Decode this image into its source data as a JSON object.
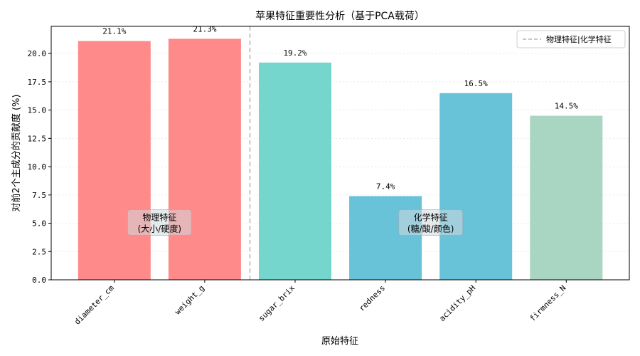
{
  "chart_data": {
    "type": "bar",
    "title": "苹果特征重要性分析（基于PCA载荷）",
    "xlabel": "原始特征",
    "ylabel": "对前2个主成分的贡献度 (%)",
    "categories": [
      "diameter_cm",
      "weight_g",
      "sugar_brix",
      "redness",
      "acidity_pH",
      "firmness_N"
    ],
    "values": [
      21.1,
      21.3,
      19.2,
      7.4,
      16.5,
      14.5
    ],
    "value_labels": [
      "21.1%",
      "21.3%",
      "19.2%",
      "7.4%",
      "16.5%",
      "14.5%"
    ],
    "bar_colors": [
      "#ff8a8a",
      "#ff8a8a",
      "#74d6cc",
      "#68c3d9",
      "#68c3d9",
      "#a9d6c2"
    ],
    "ylim": [
      0,
      22.4
    ],
    "yticks": [
      0,
      2.5,
      5,
      7.5,
      10,
      12.5,
      15,
      17.5,
      20
    ],
    "ytick_labels": [
      "0.0",
      "2.5",
      "5.0",
      "7.5",
      "10.0",
      "12.5",
      "15.0",
      "17.5",
      "20.0"
    ],
    "grid": "y-dotted",
    "divider_after_category_index": 1,
    "legend": {
      "placement": "top-right",
      "entry": "物理特征|化学特征"
    },
    "annotations": [
      {
        "line1": "物理特征",
        "line2": "(大小/硬度)",
        "center_between": [
          0,
          1
        ],
        "y": 5.0
      },
      {
        "line1": "化学特征",
        "line2": "(糖/酸/颜色)",
        "center_between": [
          3,
          4
        ],
        "y": 5.0
      }
    ]
  }
}
